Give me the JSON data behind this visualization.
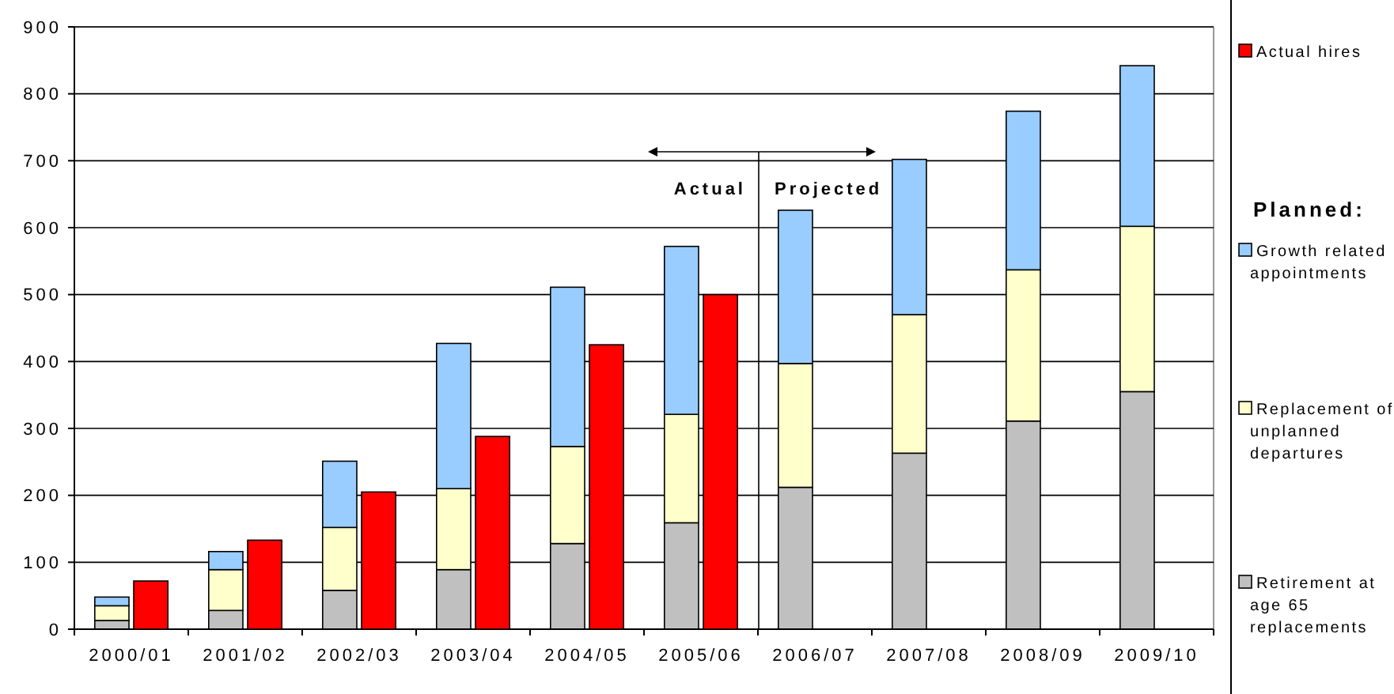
{
  "chart_data": [
    {
      "type": "bar",
      "categories": [
        "2000/01",
        "2001/02",
        "2002/03",
        "2003/04",
        "2004/05",
        "2005/06",
        "2006/07",
        "2007/08",
        "2008/09",
        "2009/10"
      ],
      "stacked": true,
      "legend": "right",
      "legend_title": "Planned:",
      "grid": "y",
      "ylim": [
        0,
        900
      ],
      "yticks": [
        0,
        100,
        200,
        300,
        400,
        500,
        600,
        700,
        800,
        900
      ],
      "series": [
        {
          "name": "Retirement at age 65 replacements",
          "color": "#c0c0c0",
          "values": [
            13,
            28,
            58,
            89,
            128,
            159,
            212,
            263,
            311,
            355
          ]
        },
        {
          "name": "Replacement of unplanned departures",
          "color": "#ffffcc",
          "values": [
            22,
            61,
            94,
            121,
            145,
            162,
            185,
            207,
            226,
            247
          ]
        },
        {
          "name": "Growth related appointments",
          "color": "#99ccff",
          "values": [
            13,
            27,
            99,
            217,
            238,
            251,
            229,
            232,
            237,
            240
          ]
        }
      ],
      "annotations": [
        "Actual",
        "Projected"
      ]
    },
    {
      "type": "bar",
      "categories": [
        "2000/01",
        "2001/02",
        "2002/03",
        "2003/04",
        "2004/05",
        "2005/06",
        "2006/07",
        "2007/08",
        "2008/09",
        "2009/10"
      ],
      "legend": "top right",
      "ylim": [
        0,
        900
      ],
      "tick_labels": false,
      "series": [
        {
          "name": "Actual hires",
          "color": "#ff0000",
          "values": [
            72,
            133,
            205,
            288,
            425,
            500,
            null,
            null,
            null,
            null
          ]
        }
      ]
    }
  ]
}
